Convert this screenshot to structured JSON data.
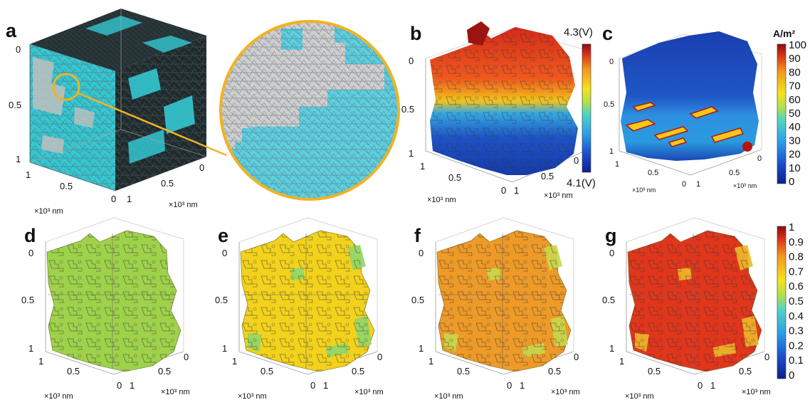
{
  "figure": {
    "panel_letters": [
      "a",
      "b",
      "c",
      "d",
      "e",
      "f",
      "g"
    ],
    "unit_label": "×10³ nm",
    "axis_ticks": {
      "zero": "0",
      "half": "0.5",
      "one": "1"
    },
    "panel_b_colorbar": {
      "max_label": "4.3(V)",
      "min_label": "4.1(V)"
    },
    "panel_c_colorbar": {
      "unit": "A/m²",
      "ticks": [
        "100",
        "90",
        "80",
        "70",
        "60",
        "50",
        "40",
        "30",
        "20",
        "10",
        "0"
      ]
    },
    "bottom_colorbar": {
      "ticks": [
        "1",
        "0.9",
        "0.8",
        "0.7",
        "0.6",
        "0.5",
        "0.4",
        "0.3",
        "0.2",
        "0.1",
        "0"
      ]
    },
    "colors": {
      "mesh_cyan": "#33c8d2",
      "mesh_grey": "#c8c8c8",
      "zoom_ring": "#f0b323",
      "d_fill": "#9ed24a",
      "e_fill": "#f2d21c",
      "f_fill": "#ee9a28",
      "g_fill": "#e0361c"
    }
  }
}
